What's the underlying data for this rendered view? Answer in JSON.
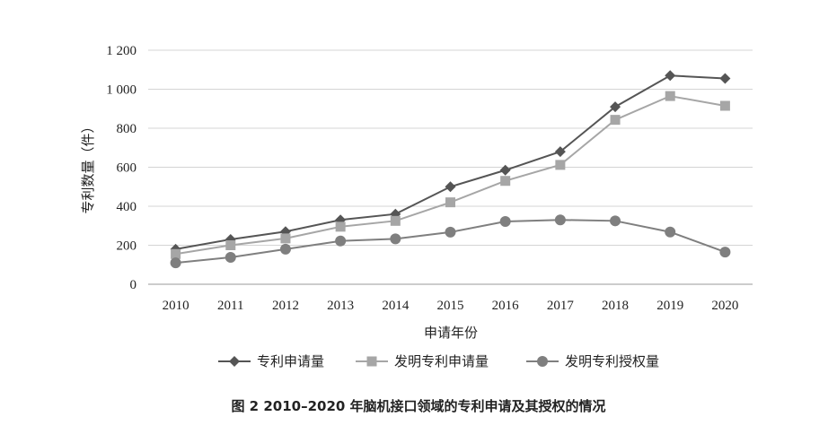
{
  "chart_data": {
    "type": "line",
    "title": "",
    "caption": "图 2   2010–2020 年脑机接口领域的专利申请及其授权的情况",
    "xlabel": "申请年份",
    "ylabel": "专利数量（件）",
    "x": [
      "2010",
      "2011",
      "2012",
      "2013",
      "2014",
      "2015",
      "2016",
      "2017",
      "2018",
      "2019",
      "2020"
    ],
    "ylim": [
      0,
      1200
    ],
    "yticks": [
      0,
      200,
      400,
      600,
      800,
      1000,
      1200
    ],
    "ytick_labels": [
      "0",
      "200",
      "400",
      "600",
      "800",
      "1 000",
      "1 200"
    ],
    "grid": true,
    "legend_position": "bottom",
    "series": [
      {
        "name": "专利申请量",
        "marker": "diamond",
        "color": "#555555",
        "values": [
          180,
          230,
          270,
          330,
          360,
          500,
          585,
          680,
          910,
          1070,
          1055
        ]
      },
      {
        "name": "发明专利申请量",
        "marker": "square",
        "color": "#a6a6a6",
        "values": [
          155,
          200,
          235,
          295,
          325,
          420,
          530,
          612,
          843,
          965,
          915
        ]
      },
      {
        "name": "发明专利授权量",
        "marker": "circle",
        "color": "#7f7f7f",
        "values": [
          110,
          138,
          180,
          222,
          233,
          267,
          322,
          330,
          325,
          268,
          165
        ]
      }
    ]
  }
}
